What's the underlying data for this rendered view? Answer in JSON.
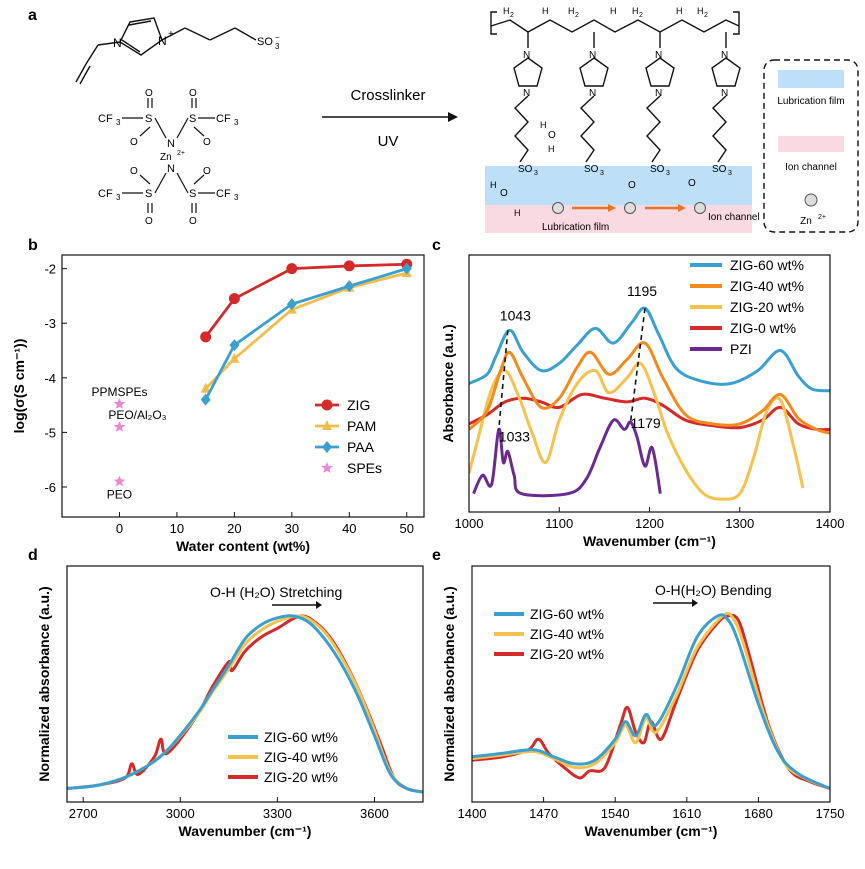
{
  "panel_labels": {
    "a": "a",
    "b": "b",
    "c": "c",
    "d": "d",
    "e": "e"
  },
  "panel_a": {
    "monomer_cation_charge": "+",
    "sulfonate": "SO",
    "sulfonate_sub": "3",
    "sulfonate_sup": "−",
    "tfsi_groups": [
      "CF",
      "CF",
      "CF",
      "CF"
    ],
    "tfsi_sub": "3",
    "zn_label": "Zn",
    "zn_sup": "2+",
    "atom_S": "S",
    "atom_N": "N",
    "atom_O": "O",
    "arrow_top": "Crosslinker",
    "arrow_bottom": "UV",
    "polymer_H2": "H",
    "polymer_H2_sub": "2",
    "polymer_H": "H",
    "lubrication_film_label": "Lubrication film",
    "ion_channel_label": "Ion channel",
    "legend_lubrication": "Lubrication film",
    "legend_ion_channel": "Ion channel",
    "legend_zn": "Zn",
    "legend_zn_sup": "2+"
  },
  "chart_data": [
    {
      "panel": "b",
      "type": "scatter",
      "xlabel": "Water content (wt%)",
      "ylabel": "log(σ(S cm⁻¹))",
      "xlim": [
        -10,
        53
      ],
      "ylim": [
        -6.55,
        -1.75
      ],
      "xticks": [
        0,
        10,
        20,
        30,
        40,
        50
      ],
      "yticks": [
        -6,
        -5,
        -4,
        -3,
        -2
      ],
      "legend_position": "lower-right",
      "series": [
        {
          "name": "ZIG",
          "color": "#d42a2a",
          "marker": "circle",
          "x": [
            15,
            20,
            30,
            40,
            50
          ],
          "y": [
            -3.25,
            -2.55,
            -2.0,
            -1.95,
            -1.92
          ]
        },
        {
          "name": "PAM",
          "color": "#f2bd4c",
          "marker": "triangle",
          "x": [
            15,
            20,
            30,
            40,
            50
          ],
          "y": [
            -4.2,
            -3.65,
            -2.75,
            -2.35,
            -2.08
          ]
        },
        {
          "name": "PAA",
          "color": "#3aa0d0",
          "marker": "diamond",
          "x": [
            15,
            20,
            30,
            40,
            50
          ],
          "y": [
            -4.4,
            -3.4,
            -2.65,
            -2.32,
            -2.0
          ]
        },
        {
          "name": "SPEs",
          "color": "#ee86d8",
          "marker": "star",
          "x": [
            0,
            0,
            0
          ],
          "y": [
            -4.48,
            -4.9,
            -5.9
          ],
          "labels": [
            "PPMSPEs",
            "PEO/Al₂O₃",
            "PEO"
          ]
        }
      ]
    },
    {
      "panel": "c",
      "type": "line",
      "xlabel": "Wavenumber (cm⁻¹)",
      "ylabel": "Absorbance (a.u.)",
      "xlim": [
        1000,
        1400
      ],
      "xticks": [
        1000,
        1100,
        1200,
        1300,
        1400
      ],
      "legend_position": "top-right",
      "annotations": [
        "1043",
        "1195",
        "1033",
        "1179"
      ],
      "series": [
        {
          "name": "ZIG-60 wt%",
          "color": "#3aa0d0",
          "x": [
            1000,
            1020,
            1030,
            1045,
            1060,
            1080,
            1100,
            1120,
            1140,
            1160,
            1180,
            1195,
            1210,
            1230,
            1260,
            1290,
            1320,
            1345,
            1365,
            1380,
            1400
          ],
          "y": [
            0.55,
            0.6,
            0.7,
            0.84,
            0.72,
            0.62,
            0.66,
            0.76,
            0.85,
            0.77,
            0.88,
            0.96,
            0.82,
            0.63,
            0.56,
            0.55,
            0.62,
            0.73,
            0.59,
            0.52,
            0.51
          ]
        },
        {
          "name": "ZIG-40 wt%",
          "color": "#f28a1d",
          "x": [
            1000,
            1020,
            1035,
            1045,
            1060,
            1080,
            1100,
            1120,
            1135,
            1155,
            1175,
            1195,
            1215,
            1240,
            1270,
            1300,
            1325,
            1345,
            1365,
            1385,
            1400
          ],
          "y": [
            0.3,
            0.4,
            0.62,
            0.72,
            0.58,
            0.42,
            0.47,
            0.64,
            0.72,
            0.6,
            0.68,
            0.77,
            0.58,
            0.38,
            0.33,
            0.33,
            0.4,
            0.49,
            0.36,
            0.3,
            0.28
          ]
        },
        {
          "name": "ZIG-20 wt%",
          "color": "#f5c24d",
          "x": [
            1000,
            1010,
            1025,
            1040,
            1055,
            1070,
            1085,
            1100,
            1120,
            1140,
            1155,
            1175,
            1190,
            1205,
            1220,
            1240,
            1260,
            1280,
            1300,
            1315,
            1330,
            1345,
            1360,
            1370
          ],
          "y": [
            0.06,
            0.25,
            0.52,
            0.62,
            0.48,
            0.28,
            0.12,
            0.35,
            0.55,
            0.62,
            0.5,
            0.58,
            0.66,
            0.5,
            0.28,
            0.08,
            -0.05,
            -0.08,
            -0.05,
            0.14,
            0.4,
            0.46,
            0.2,
            -0.02
          ]
        },
        {
          "name": "ZIG-0 wt%",
          "color": "#d42a2a",
          "x": [
            1000,
            1020,
            1040,
            1060,
            1080,
            1100,
            1125,
            1150,
            1175,
            1195,
            1215,
            1240,
            1270,
            1300,
            1325,
            1345,
            1365,
            1385,
            1400
          ],
          "y": [
            0.33,
            0.38,
            0.45,
            0.47,
            0.45,
            0.42,
            0.49,
            0.47,
            0.45,
            0.47,
            0.43,
            0.35,
            0.32,
            0.31,
            0.35,
            0.42,
            0.33,
            0.3,
            0.3
          ]
        },
        {
          "name": "PZI",
          "color": "#6a2a90",
          "x": [
            1005,
            1015,
            1025,
            1033,
            1038,
            1043,
            1050,
            1058,
            1110,
            1130,
            1145,
            1160,
            1172,
            1179,
            1186,
            1195,
            1203,
            1212
          ],
          "y": [
            -0.05,
            0.05,
            0.0,
            0.3,
            0.12,
            0.18,
            0.05,
            -0.05,
            -0.05,
            0.03,
            0.2,
            0.35,
            0.3,
            0.34,
            0.26,
            0.1,
            0.2,
            -0.05
          ]
        }
      ]
    },
    {
      "panel": "d",
      "type": "line",
      "xlabel": "Wavenumber (cm⁻¹)",
      "ylabel": "Normalized absorbance (a.u.)",
      "xlim": [
        2650,
        3750
      ],
      "ylim": [
        0,
        1.05
      ],
      "xticks": [
        2700,
        3000,
        3300,
        3600
      ],
      "legend_position": "lower-center",
      "annotation": "O-H (H₂O)  Stretching",
      "series": [
        {
          "name": "ZIG-60 wt%",
          "color": "#3aa0d0",
          "x": [
            2650,
            2750,
            2850,
            2950,
            3050,
            3100,
            3150,
            3200,
            3250,
            3300,
            3350,
            3400,
            3450,
            3500,
            3550,
            3600,
            3650,
            3700,
            3750
          ],
          "y": [
            0.02,
            0.04,
            0.1,
            0.22,
            0.44,
            0.58,
            0.72,
            0.87,
            0.95,
            0.99,
            1.0,
            0.96,
            0.86,
            0.72,
            0.54,
            0.32,
            0.1,
            0.02,
            0.0
          ]
        },
        {
          "name": "ZIG-40 wt%",
          "color": "#f5c24d",
          "x": [
            2650,
            2750,
            2850,
            2950,
            3050,
            3100,
            3150,
            3200,
            3250,
            3300,
            3360,
            3400,
            3450,
            3500,
            3550,
            3600,
            3650,
            3700,
            3750
          ],
          "y": [
            0.02,
            0.04,
            0.1,
            0.22,
            0.43,
            0.57,
            0.7,
            0.84,
            0.92,
            0.97,
            1.0,
            0.98,
            0.9,
            0.76,
            0.58,
            0.35,
            0.11,
            0.02,
            0.0
          ]
        },
        {
          "name": "ZIG-20 wt%",
          "color": "#d42a2a",
          "x": [
            2650,
            2750,
            2830,
            2850,
            2870,
            2920,
            2940,
            2960,
            3050,
            3100,
            3150,
            3160,
            3200,
            3250,
            3300,
            3370,
            3420,
            3470,
            3520,
            3570,
            3620,
            3660,
            3700,
            3750
          ],
          "y": [
            0.02,
            0.04,
            0.08,
            0.16,
            0.1,
            0.2,
            0.3,
            0.22,
            0.43,
            0.6,
            0.74,
            0.69,
            0.8,
            0.88,
            0.93,
            1.0,
            0.96,
            0.86,
            0.7,
            0.5,
            0.27,
            0.08,
            0.02,
            0.0
          ]
        }
      ]
    },
    {
      "panel": "e",
      "type": "line",
      "xlabel": "Wavenumber (cm⁻¹)",
      "ylabel": "Normalized absorbance (a.u.)",
      "xlim": [
        1400,
        1750
      ],
      "ylim": [
        0,
        1.05
      ],
      "xticks": [
        1400,
        1470,
        1540,
        1610,
        1680,
        1750
      ],
      "legend_position": "top-left",
      "annotation": "O-H(H₂O)  Bending",
      "series": [
        {
          "name": "ZIG-60 wt%",
          "color": "#3aa0d0",
          "x": [
            1400,
            1430,
            1460,
            1480,
            1500,
            1520,
            1540,
            1550,
            1560,
            1570,
            1580,
            1600,
            1620,
            1640,
            1650,
            1660,
            1680,
            1700,
            1720,
            1750
          ],
          "y": [
            0.2,
            0.22,
            0.24,
            0.2,
            0.16,
            0.18,
            0.3,
            0.4,
            0.32,
            0.44,
            0.38,
            0.6,
            0.88,
            1.0,
            0.98,
            0.86,
            0.5,
            0.22,
            0.1,
            0.02
          ]
        },
        {
          "name": "ZIG-40 wt%",
          "color": "#f5c24d",
          "x": [
            1400,
            1430,
            1460,
            1480,
            1500,
            1520,
            1540,
            1550,
            1560,
            1570,
            1580,
            1600,
            1620,
            1645,
            1655,
            1665,
            1685,
            1705,
            1725,
            1750
          ],
          "y": [
            0.19,
            0.21,
            0.23,
            0.19,
            0.14,
            0.16,
            0.28,
            0.38,
            0.28,
            0.42,
            0.34,
            0.55,
            0.82,
            1.0,
            0.99,
            0.85,
            0.45,
            0.17,
            0.08,
            0.02
          ]
        },
        {
          "name": "ZIG-20 wt%",
          "color": "#d42a2a",
          "x": [
            1400,
            1430,
            1455,
            1465,
            1475,
            1490,
            1505,
            1515,
            1530,
            1545,
            1552,
            1560,
            1568,
            1575,
            1585,
            1600,
            1620,
            1640,
            1650,
            1660,
            1670,
            1690,
            1710,
            1730,
            1750
          ],
          "y": [
            0.18,
            0.2,
            0.24,
            0.3,
            0.22,
            0.14,
            0.08,
            0.12,
            0.14,
            0.38,
            0.48,
            0.34,
            0.28,
            0.4,
            0.3,
            0.52,
            0.8,
            0.96,
            1.0,
            0.98,
            0.8,
            0.38,
            0.13,
            0.06,
            0.02
          ]
        }
      ]
    }
  ]
}
